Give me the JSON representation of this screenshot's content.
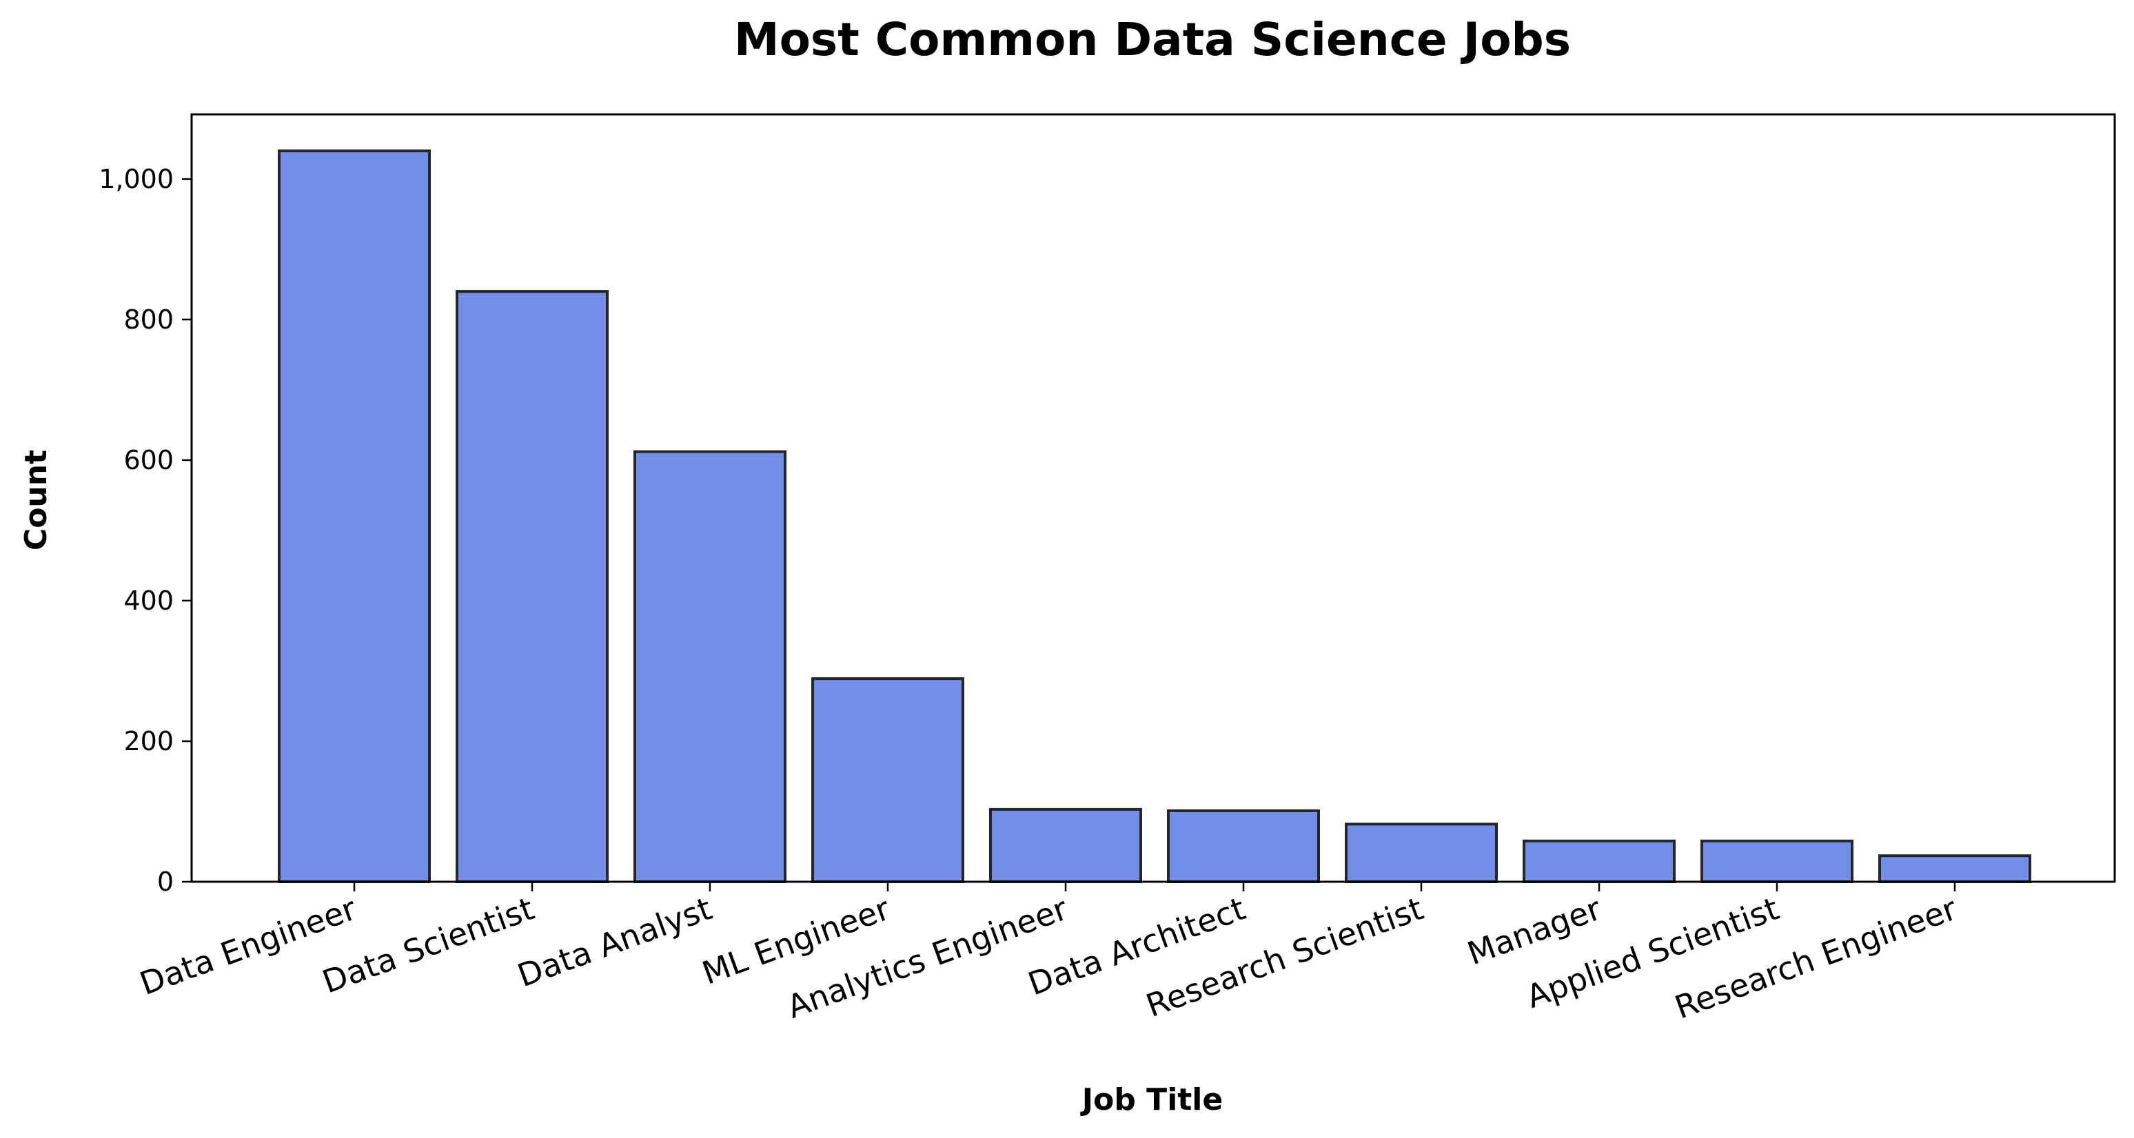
{
  "chart_data": {
    "type": "bar",
    "title": "Most Common Data Science Jobs",
    "xlabel": "Job Title",
    "ylabel": "Count",
    "categories": [
      "Data Engineer",
      "Data Scientist",
      "Data Analyst",
      "ML Engineer",
      "Analytics Engineer",
      "Data Architect",
      "Research Scientist",
      "Manager",
      "Applied Scientist",
      "Research Engineer"
    ],
    "values": [
      1040,
      840,
      612,
      289,
      103,
      101,
      82,
      58,
      58,
      37
    ],
    "ylim": [
      0,
      1092
    ],
    "yticks": [
      0,
      200,
      400,
      600,
      800,
      1000
    ],
    "ytick_labels": [
      "0",
      "200",
      "400",
      "600",
      "800",
      "1,000"
    ],
    "grid": false,
    "bar_color": "#728ee8",
    "edge_color": "#262626"
  }
}
